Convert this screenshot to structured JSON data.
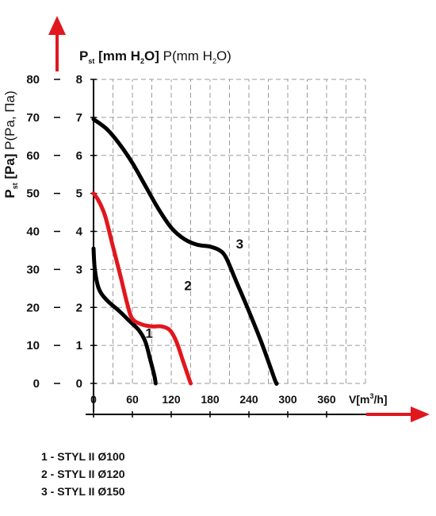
{
  "chart_data": {
    "type": "line",
    "title": "",
    "ylabel_left": "P st [Pa] P(Pa, Па)",
    "ylabel_inner": "P st [mm H2O] P(mm H2O)",
    "xlabel": "V[m³/h]",
    "x_ticks": [
      "0",
      "60",
      "120",
      "180",
      "240",
      "300",
      "360"
    ],
    "y_ticks_pa": [
      "0",
      "10",
      "20",
      "30",
      "40",
      "50",
      "60",
      "70",
      "80"
    ],
    "y_ticks_mm": [
      "0",
      "1",
      "2",
      "3",
      "4",
      "5",
      "6",
      "7",
      "8"
    ],
    "xlim": [
      0,
      420
    ],
    "ylim_mm": [
      0,
      8
    ],
    "ylim_pa": [
      0,
      80
    ],
    "grid": true,
    "series": [
      {
        "name": "1",
        "color": "#000000",
        "points": [
          [
            0,
            3.55
          ],
          [
            2,
            3.0
          ],
          [
            8,
            2.5
          ],
          [
            20,
            2.2
          ],
          [
            40,
            1.9
          ],
          [
            55,
            1.65
          ],
          [
            70,
            1.4
          ],
          [
            80,
            1.1
          ],
          [
            88,
            0.6
          ],
          [
            94,
            0.2
          ],
          [
            96,
            0.0
          ]
        ]
      },
      {
        "name": "2",
        "color": "#e1171e",
        "points": [
          [
            0,
            5.0
          ],
          [
            8,
            4.8
          ],
          [
            18,
            4.4
          ],
          [
            30,
            3.6
          ],
          [
            42,
            2.8
          ],
          [
            52,
            2.1
          ],
          [
            60,
            1.7
          ],
          [
            75,
            1.55
          ],
          [
            90,
            1.5
          ],
          [
            105,
            1.5
          ],
          [
            118,
            1.4
          ],
          [
            128,
            1.1
          ],
          [
            138,
            0.6
          ],
          [
            146,
            0.2
          ],
          [
            150,
            0.0
          ]
        ]
      },
      {
        "name": "3",
        "color": "#000000",
        "points": [
          [
            0,
            6.95
          ],
          [
            20,
            6.7
          ],
          [
            40,
            6.3
          ],
          [
            60,
            5.8
          ],
          [
            80,
            5.2
          ],
          [
            100,
            4.6
          ],
          [
            120,
            4.1
          ],
          [
            140,
            3.8
          ],
          [
            160,
            3.65
          ],
          [
            180,
            3.6
          ],
          [
            195,
            3.5
          ],
          [
            205,
            3.3
          ],
          [
            220,
            2.7
          ],
          [
            240,
            1.9
          ],
          [
            260,
            1.05
          ],
          [
            280,
            0.1
          ],
          [
            283,
            0.0
          ]
        ]
      }
    ],
    "curve_labels": [
      {
        "text": "1",
        "x": 80,
        "y": 1.2
      },
      {
        "text": "2",
        "x": 140,
        "y": 2.45
      },
      {
        "text": "3",
        "x": 220,
        "y": 3.55
      }
    ]
  },
  "legend": [
    "1 - STYL II Ø100",
    "2 - STYL II Ø120",
    "3 - STYL II Ø150"
  ],
  "colors": {
    "arrow": "#e1171e",
    "grid": "#9a9a9a",
    "axis": "#000000"
  }
}
